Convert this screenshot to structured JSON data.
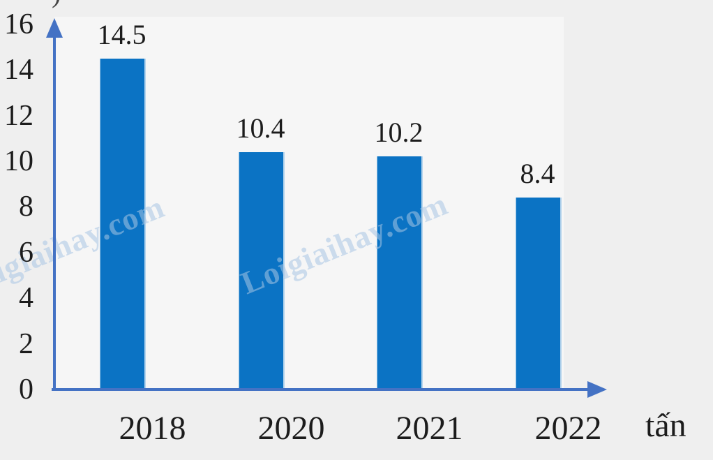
{
  "chart_data": {
    "type": "bar",
    "categories": [
      "2018",
      "2020",
      "2021",
      "2022"
    ],
    "values": [
      14.5,
      10.4,
      10.2,
      8.4
    ],
    "data_labels": [
      "14.5",
      "10.4",
      "10.2",
      "8.4"
    ],
    "title": "",
    "xlabel": "tấn",
    "ylabel": "",
    "y_ticks": [
      0,
      2,
      4,
      6,
      8,
      10,
      12,
      14,
      16
    ],
    "ylim": [
      0,
      16
    ],
    "grid": false,
    "legend": false,
    "bar_color": "#0b73c4",
    "axis_color": "#4472c4",
    "background_color": "#efefef",
    "text_color": "#1c1c1c"
  },
  "watermark": {
    "text": "Loigiaihay.com"
  },
  "decor": {
    "cropped_glyph": ")"
  }
}
